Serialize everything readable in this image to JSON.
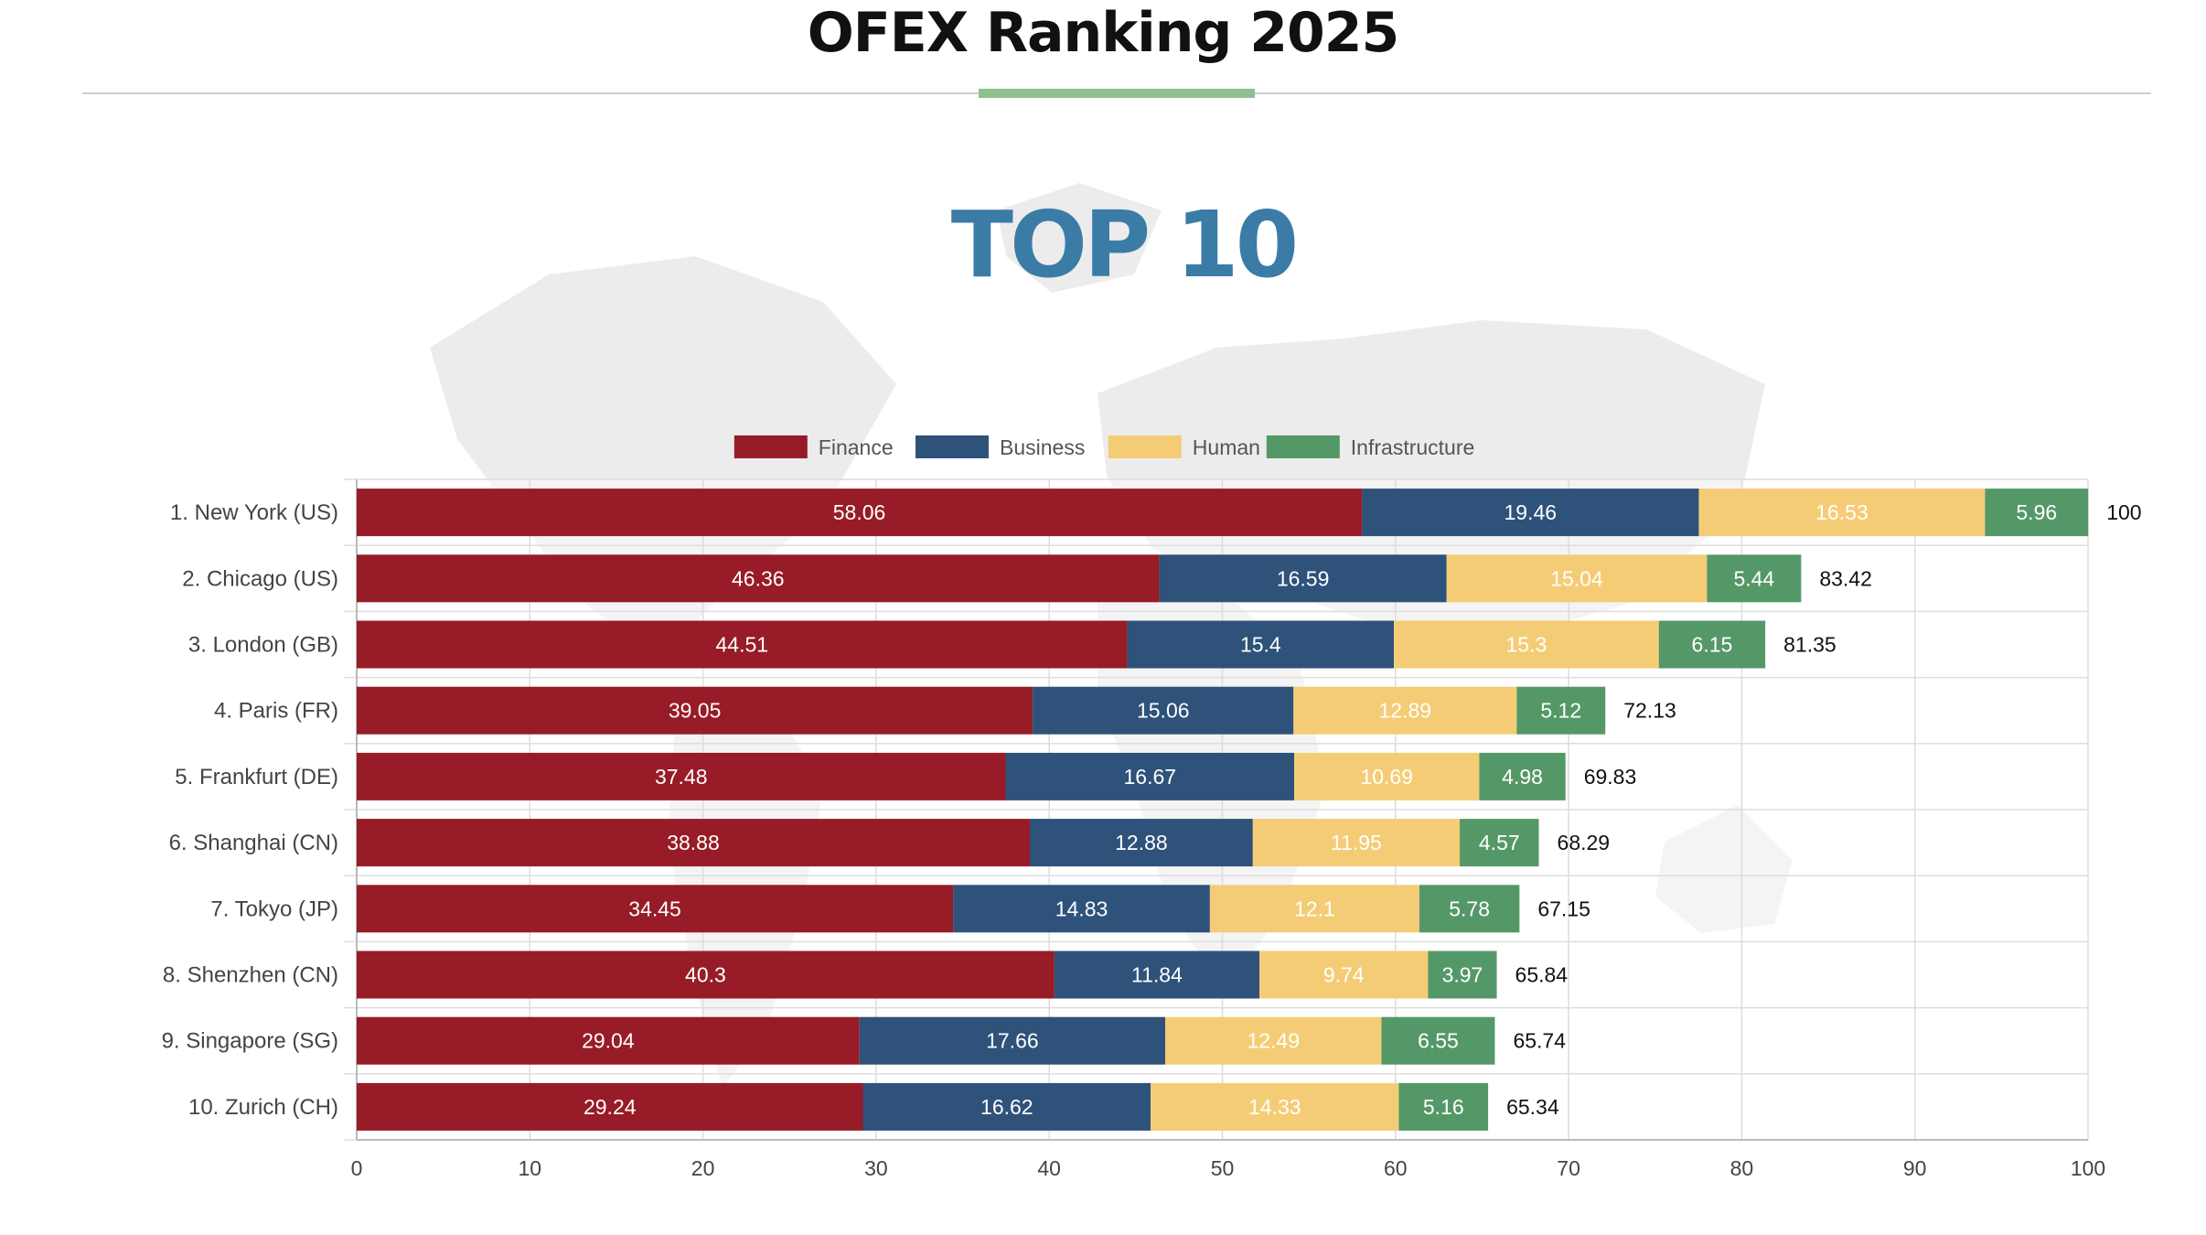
{
  "header": {
    "title": "OFEX Ranking 2025"
  },
  "chart_data": {
    "type": "bar",
    "orientation": "horizontal",
    "stacked": true,
    "title": "",
    "subtitle": "TOP 10",
    "xlabel": "",
    "ylabel": "",
    "xlim": [
      0,
      100
    ],
    "xticks": [
      0,
      10,
      20,
      30,
      40,
      50,
      60,
      70,
      80,
      90,
      100
    ],
    "grid": true,
    "legend_position": "top-center",
    "categories": [
      "1. New York (US)",
      "2. Chicago (US)",
      "3. London (GB)",
      "4. Paris (FR)",
      "5. Frankfurt (DE)",
      "6. Shanghai (CN)",
      "7. Tokyo (JP)",
      "8. Shenzhen (CN)",
      "9. Singapore (SG)",
      "10. Zurich (CH)"
    ],
    "series": [
      {
        "name": "Finance",
        "color": "#971c27",
        "values": [
          58.06,
          46.36,
          44.51,
          39.05,
          37.48,
          38.88,
          34.45,
          40.3,
          29.04,
          29.24
        ]
      },
      {
        "name": "Business",
        "color": "#2e527a",
        "values": [
          19.46,
          16.59,
          15.4,
          15.06,
          16.67,
          12.88,
          14.83,
          11.84,
          17.66,
          16.62
        ]
      },
      {
        "name": "Human",
        "color": "#f5cc76",
        "values": [
          16.53,
          15.04,
          15.3,
          12.89,
          10.69,
          11.95,
          12.1,
          9.74,
          12.49,
          14.33
        ]
      },
      {
        "name": "Infrastructure",
        "color": "#559868",
        "values": [
          5.96,
          5.44,
          6.15,
          5.12,
          4.98,
          4.57,
          5.78,
          3.97,
          6.55,
          5.16
        ]
      }
    ],
    "totals": [
      100,
      83.42,
      81.35,
      72.13,
      69.83,
      68.29,
      67.15,
      65.84,
      65.74,
      65.34
    ],
    "subtitle_color": "#3b7ca6"
  }
}
